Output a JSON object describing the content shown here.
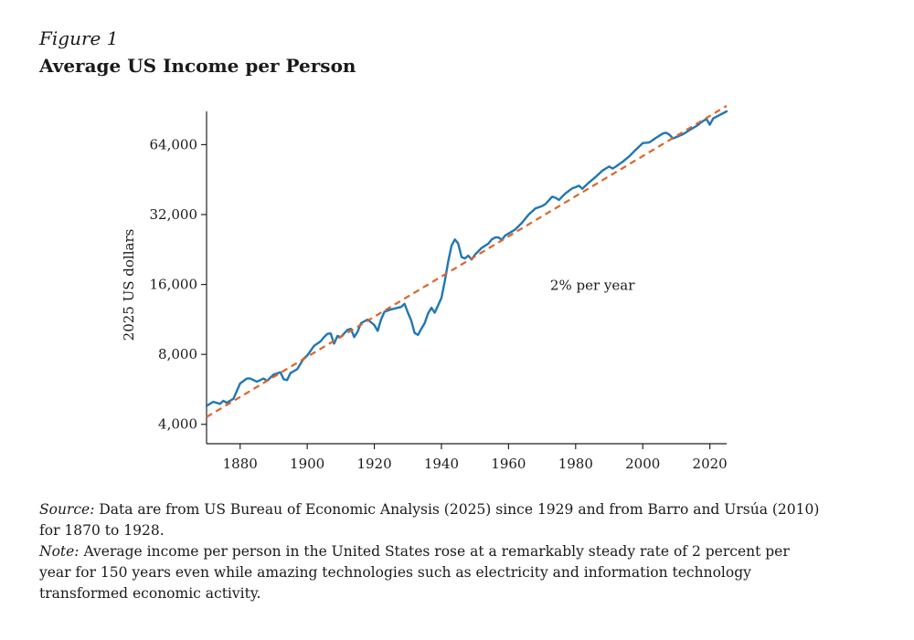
{
  "figure": {
    "label": "Figure 1",
    "title": "Average US Income per Person"
  },
  "chart_data": {
    "type": "line",
    "title": "Average US Income per Person",
    "xlabel": "",
    "ylabel": "2025 US dollars",
    "y_scale": "log2",
    "xlim": [
      1870,
      2025
    ],
    "ylim": [
      3300,
      89000
    ],
    "x_ticks": [
      1880,
      1900,
      1920,
      1940,
      1960,
      1980,
      2000,
      2020
    ],
    "y_ticks": [
      4000,
      8000,
      16000,
      32000,
      64000
    ],
    "y_tick_labels": [
      "4,000",
      "8,000",
      "16,000",
      "32,000",
      "64,000"
    ],
    "x_tick_labels": [
      "1880",
      "1900",
      "1920",
      "1940",
      "1960",
      "1980",
      "2000",
      "2020"
    ],
    "grid": false,
    "annotation": "2% per year",
    "series": [
      {
        "style": "solid",
        "color": "#1f77b4",
        "x": [
          1870,
          1872,
          1874,
          1875,
          1876,
          1878,
          1880,
          1882,
          1883,
          1885,
          1887,
          1888,
          1890,
          1892,
          1893,
          1894,
          1895,
          1897,
          1899,
          1900,
          1902,
          1904,
          1905,
          1906,
          1907,
          1908,
          1909,
          1910,
          1912,
          1913,
          1914,
          1915,
          1916,
          1918,
          1919,
          1920,
          1921,
          1922,
          1923,
          1925,
          1926,
          1927,
          1928,
          1929,
          1930,
          1931,
          1932,
          1933,
          1934,
          1935,
          1936,
          1937,
          1938,
          1939,
          1940,
          1941,
          1942,
          1943,
          1944,
          1945,
          1946,
          1947,
          1948,
          1949,
          1950,
          1952,
          1954,
          1955,
          1956,
          1957,
          1958,
          1959,
          1960,
          1962,
          1964,
          1966,
          1968,
          1970,
          1971,
          1973,
          1974,
          1975,
          1977,
          1979,
          1980,
          1981,
          1982,
          1984,
          1986,
          1988,
          1990,
          1991,
          1992,
          1994,
          1996,
          1998,
          2000,
          2001,
          2002,
          2004,
          2006,
          2007,
          2008,
          2009,
          2010,
          2012,
          2014,
          2016,
          2018,
          2019,
          2020,
          2021,
          2023,
          2025
        ],
        "y": [
          4800,
          5000,
          4900,
          5050,
          4950,
          5150,
          6000,
          6300,
          6300,
          6100,
          6300,
          6150,
          6550,
          6700,
          6250,
          6200,
          6650,
          6900,
          7700,
          7900,
          8700,
          9100,
          9500,
          9800,
          9850,
          8900,
          9600,
          9500,
          10200,
          10300,
          9500,
          10000,
          10900,
          11300,
          11000,
          10700,
          10100,
          11300,
          12200,
          12500,
          12600,
          12700,
          12800,
          13200,
          12100,
          11200,
          9900,
          9700,
          10300,
          10900,
          12000,
          12700,
          12100,
          13000,
          14000,
          16500,
          20000,
          23500,
          25000,
          24000,
          21000,
          20700,
          21300,
          20500,
          21500,
          23000,
          24000,
          25000,
          25500,
          25500,
          24900,
          26000,
          26500,
          27600,
          29500,
          32000,
          34000,
          34800,
          35500,
          38200,
          37800,
          37000,
          39500,
          41500,
          42000,
          42600,
          41300,
          44000,
          46500,
          49500,
          51500,
          50500,
          51500,
          54000,
          57000,
          61000,
          65000,
          65200,
          65500,
          68500,
          71500,
          72000,
          70500,
          68000,
          69000,
          71000,
          74000,
          77000,
          81000,
          82500,
          78000,
          83000,
          86000,
          89000
        ]
      },
      {
        "name": "2% per year",
        "style": "dashed",
        "color": "#e0622a",
        "x": [
          1870,
          2025
        ],
        "y": [
          4300,
          94000
        ]
      }
    ]
  },
  "caption": {
    "source_lead": "Source:",
    "source_text": " Data are from US Bureau of Economic Analysis (2025) since 1929 and from Barro and Ursúa (2010) for 1870 to 1928.",
    "note_lead": "Note:",
    "note_text": " Average income per person in the United States rose at a remarkably steady rate of 2 percent per year for 150 years even while amazing technologies such as electricity and information technology transformed economic activity."
  }
}
